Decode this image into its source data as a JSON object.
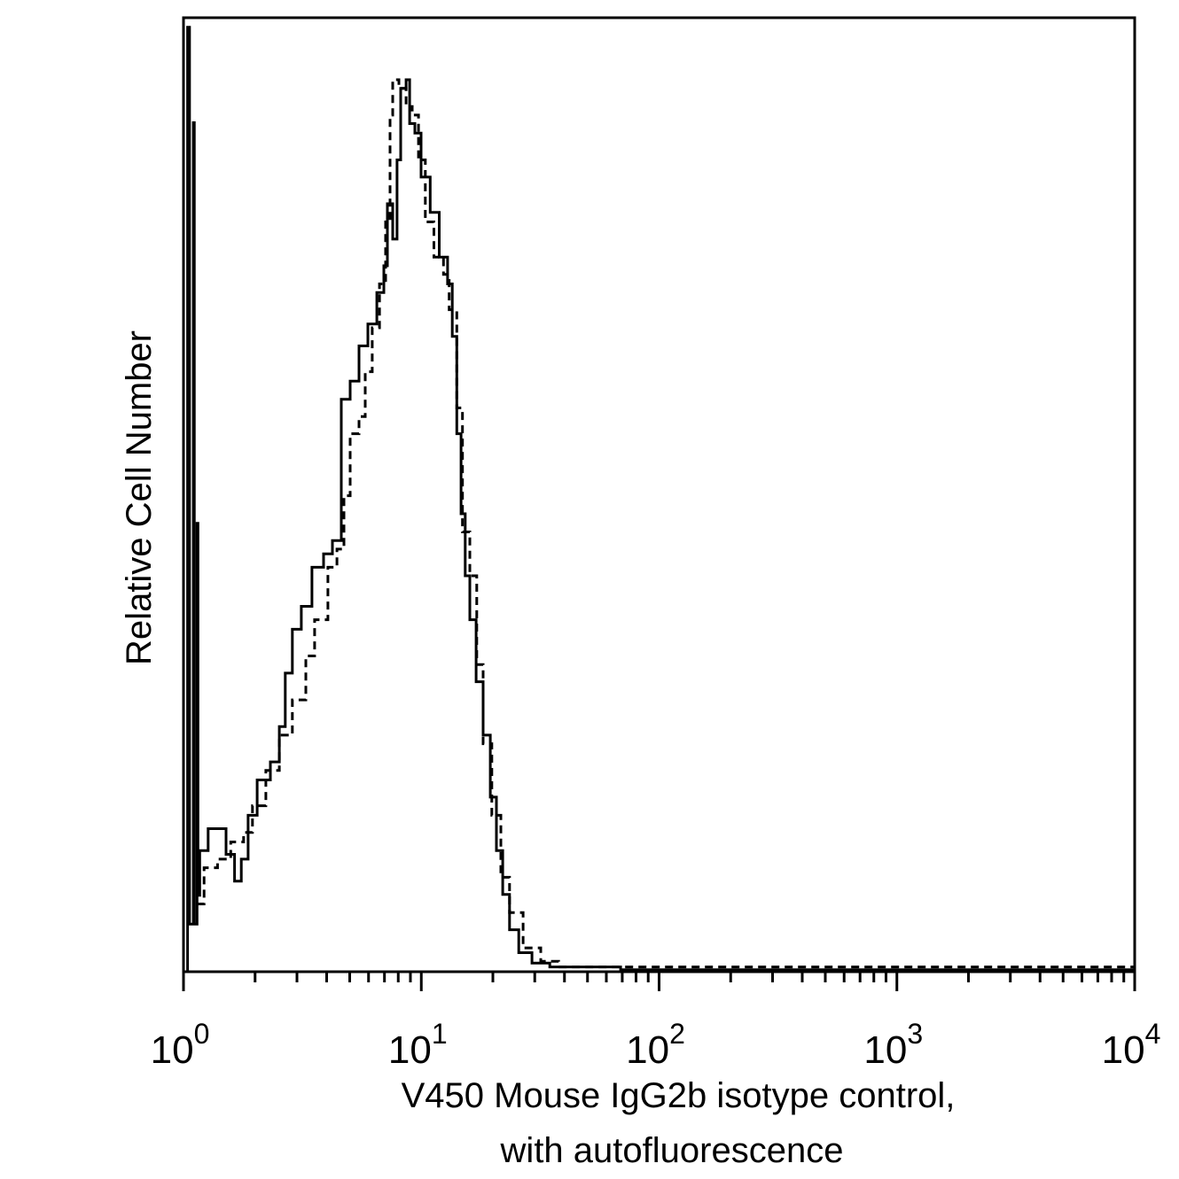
{
  "chart_data": {
    "type": "line",
    "title": "",
    "xlabel": [
      "V450 Mouse IgG2b isotype control,",
      "with autofluorescence"
    ],
    "ylabel": "Relative Cell Number",
    "xscale": "log",
    "xlim": [
      1,
      10000
    ],
    "ylim": [
      0,
      100
    ],
    "grid": false,
    "legend": "none",
    "x_tick_labels": [
      {
        "base": "10",
        "exp": "0",
        "value": 1
      },
      {
        "base": "10",
        "exp": "1",
        "value": 10
      },
      {
        "base": "10",
        "exp": "2",
        "value": 100
      },
      {
        "base": "10",
        "exp": "3",
        "value": 1000
      },
      {
        "base": "10",
        "exp": "4",
        "value": 10000
      }
    ],
    "colors": {
      "line": "#000000",
      "axis": "#000000"
    },
    "series": [
      {
        "style": "solid",
        "points": [
          [
            1.04,
            0
          ],
          [
            1.04,
            99
          ],
          [
            1.06,
            99
          ],
          [
            1.06,
            5
          ],
          [
            1.1,
            5
          ],
          [
            1.1,
            89
          ],
          [
            1.11,
            89
          ],
          [
            1.11,
            5
          ],
          [
            1.14,
            5
          ],
          [
            1.14,
            47
          ],
          [
            1.15,
            47
          ],
          [
            1.15,
            8
          ],
          [
            1.17,
            12.7
          ],
          [
            1.27,
            15.0
          ],
          [
            1.39,
            15.0
          ],
          [
            1.51,
            12.3
          ],
          [
            1.64,
            9.5
          ],
          [
            1.75,
            11.8
          ],
          [
            1.87,
            16.4
          ],
          [
            2.04,
            20.1
          ],
          [
            2.32,
            22.0
          ],
          [
            2.53,
            25.7
          ],
          [
            2.68,
            31.3
          ],
          [
            2.87,
            35.9
          ],
          [
            3.13,
            38.3
          ],
          [
            3.47,
            42.4
          ],
          [
            3.88,
            43.8
          ],
          [
            4.23,
            45.2
          ],
          [
            4.61,
            60.0
          ],
          [
            5.02,
            61.9
          ],
          [
            5.47,
            65.6
          ],
          [
            5.96,
            67.9
          ],
          [
            6.5,
            71.2
          ],
          [
            6.96,
            74.0
          ],
          [
            7.2,
            80.5
          ],
          [
            7.58,
            76.8
          ],
          [
            7.91,
            85.1
          ],
          [
            8.19,
            92.6
          ],
          [
            8.63,
            93.5
          ],
          [
            8.93,
            88.9
          ],
          [
            9.4,
            87.9
          ],
          [
            9.98,
            83.3
          ],
          [
            10.9,
            79.6
          ],
          [
            11.9,
            74.9
          ],
          [
            12.9,
            72.1
          ],
          [
            13.5,
            66.6
          ],
          [
            14.1,
            56.4
          ],
          [
            14.7,
            48.0
          ],
          [
            15.3,
            41.5
          ],
          [
            16.0,
            36.9
          ],
          [
            17.0,
            30.4
          ],
          [
            18.2,
            24.8
          ],
          [
            19.5,
            18.3
          ],
          [
            20.7,
            12.7
          ],
          [
            22.0,
            8.1
          ],
          [
            23.5,
            4.4
          ],
          [
            25.7,
            2.0
          ],
          [
            29.2,
            0.9
          ],
          [
            34.7,
            0.5
          ],
          [
            68.9,
            0.2
          ],
          [
            10000,
            0.2
          ]
        ]
      },
      {
        "style": "dashed",
        "points": [
          [
            1.14,
            7.1
          ],
          [
            1.22,
            10.9
          ],
          [
            1.39,
            11.8
          ],
          [
            1.58,
            13.6
          ],
          [
            1.79,
            14.6
          ],
          [
            1.95,
            17.4
          ],
          [
            2.22,
            21.1
          ],
          [
            2.53,
            24.8
          ],
          [
            2.87,
            28.5
          ],
          [
            3.27,
            33.1
          ],
          [
            3.56,
            36.9
          ],
          [
            4.05,
            42.4
          ],
          [
            4.42,
            44.3
          ],
          [
            4.73,
            49.9
          ],
          [
            5.02,
            56.4
          ],
          [
            5.47,
            58.2
          ],
          [
            5.81,
            62.9
          ],
          [
            6.22,
            67.5
          ],
          [
            6.67,
            72.1
          ],
          [
            7.08,
            78.6
          ],
          [
            7.39,
            89.8
          ],
          [
            7.58,
            93.5
          ],
          [
            8.05,
            92.6
          ],
          [
            8.63,
            90.7
          ],
          [
            9.16,
            89.8
          ],
          [
            9.73,
            85.1
          ],
          [
            10.4,
            78.6
          ],
          [
            11.3,
            74.9
          ],
          [
            12.4,
            73.1
          ],
          [
            13.1,
            69.4
          ],
          [
            14.1,
            59.1
          ],
          [
            14.9,
            46.1
          ],
          [
            16.0,
            41.5
          ],
          [
            17.1,
            32.2
          ],
          [
            18.2,
            23.9
          ],
          [
            19.8,
            16.4
          ],
          [
            21.6,
            9.9
          ],
          [
            23.5,
            6.2
          ],
          [
            26.8,
            2.5
          ],
          [
            31.8,
            1.1
          ],
          [
            37.8,
            0.5
          ],
          [
            10000,
            0.3
          ]
        ]
      }
    ]
  }
}
